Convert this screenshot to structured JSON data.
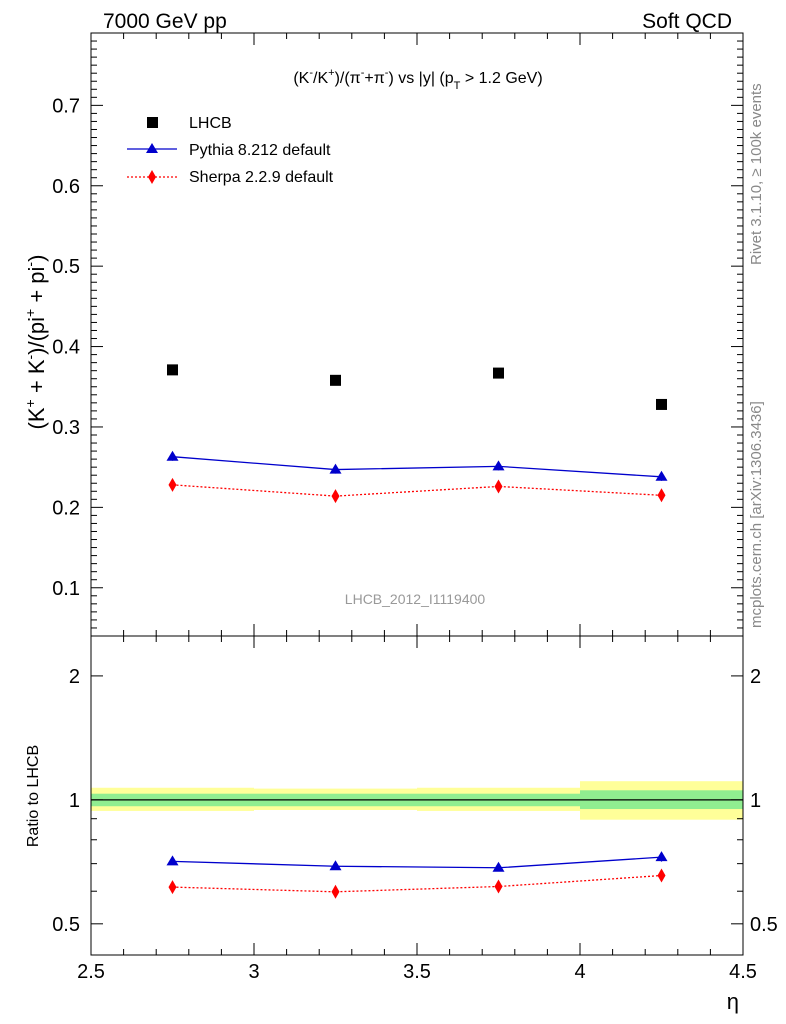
{
  "header": {
    "left": "7000 GeV pp",
    "right": "Soft QCD"
  },
  "side_labels": {
    "rivet": "Rivet 3.1.10, ≥ 100k events",
    "mcplots": "mcplots.cern.ch [arXiv:1306.3436]"
  },
  "analysis_label": "LHCB_2012_I1119400",
  "chart_data": [
    {
      "type": "scatter",
      "title_parts": {
        "t1": "(K",
        "t1_sup": "-",
        "t2": "/K",
        "t2_sup": "+",
        "t3": ")/(π",
        "t3_sup": "-",
        "t4": "+π",
        "t4_sup": "-",
        "t5": ") vs |y| (p",
        "t5_sub": "T",
        "t6": " > 1.2 GeV)"
      },
      "ylabel_parts": {
        "a": "(K",
        "a_sup": "+",
        "b": " + K",
        "b_sup": "-",
        "c": ")/(pi",
        "c_sup": "+",
        "d": " + pi",
        "d_sup": "-",
        "e": ")"
      },
      "xlim": [
        2.5,
        4.5
      ],
      "ylim": [
        0.04,
        0.79
      ],
      "yticks": [
        "0.1",
        "0.2",
        "0.3",
        "0.4",
        "0.5",
        "0.6",
        "0.7"
      ],
      "legend_position": "top-left",
      "series": [
        {
          "name": "LHCB",
          "color": "#000000",
          "marker": "square",
          "line": "none",
          "x": [
            2.75,
            3.25,
            3.75,
            4.25
          ],
          "y": [
            0.371,
            0.358,
            0.367,
            0.328
          ],
          "err": [
            0.003,
            0.003,
            0.003,
            0.003
          ]
        },
        {
          "name": "Pythia 8.212 default",
          "color": "#0000cc",
          "marker": "triangle",
          "line": "solid",
          "x": [
            2.75,
            3.25,
            3.75,
            4.25
          ],
          "y": [
            0.263,
            0.247,
            0.251,
            0.238
          ],
          "err": [
            0.005,
            0.005,
            0.005,
            0.005
          ]
        },
        {
          "name": "Sherpa 2.2.9 default",
          "color": "#ff0000",
          "marker": "diamond",
          "line": "dotted",
          "x": [
            2.75,
            3.25,
            3.75,
            4.25
          ],
          "y": [
            0.228,
            0.214,
            0.226,
            0.215
          ],
          "err": [
            0.004,
            0.004,
            0.004,
            0.004
          ]
        }
      ]
    },
    {
      "type": "scatter",
      "ylabel": "Ratio to LHCB",
      "xlabel": "η",
      "xlim": [
        2.5,
        4.5
      ],
      "ylim": [
        0.42,
        2.5
      ],
      "ylog": true,
      "xticks": [
        "2.5",
        "3",
        "3.5",
        "4",
        "4.5"
      ],
      "yticks": [
        "0.5",
        "1",
        "2"
      ],
      "bands": [
        {
          "x0": 2.5,
          "x1": 3.0,
          "stat": [
            0.965,
            1.035
          ],
          "tot": [
            0.94,
            1.07
          ]
        },
        {
          "x0": 3.0,
          "x1": 3.5,
          "stat": [
            0.965,
            1.035
          ],
          "tot": [
            0.945,
            1.065
          ]
        },
        {
          "x0": 3.5,
          "x1": 4.0,
          "stat": [
            0.965,
            1.035
          ],
          "tot": [
            0.94,
            1.07
          ]
        },
        {
          "x0": 4.0,
          "x1": 4.5,
          "stat": [
            0.95,
            1.055
          ],
          "tot": [
            0.895,
            1.11
          ]
        }
      ],
      "band_colors": {
        "stat": "#90ee90",
        "tot": "#ffff99"
      },
      "series": [
        {
          "name": "Pythia 8.212 default",
          "color": "#0000cc",
          "marker": "triangle",
          "line": "solid",
          "x": [
            2.75,
            3.25,
            3.75,
            4.25
          ],
          "y": [
            0.709,
            0.69,
            0.684,
            0.726
          ],
          "err": [
            0.012,
            0.012,
            0.012,
            0.018
          ]
        },
        {
          "name": "Sherpa 2.2.9 default",
          "color": "#ff0000",
          "marker": "diamond",
          "line": "dotted",
          "x": [
            2.75,
            3.25,
            3.75,
            4.25
          ],
          "y": [
            0.614,
            0.598,
            0.616,
            0.655
          ],
          "err": [
            0.01,
            0.01,
            0.01,
            0.015
          ]
        }
      ]
    }
  ]
}
